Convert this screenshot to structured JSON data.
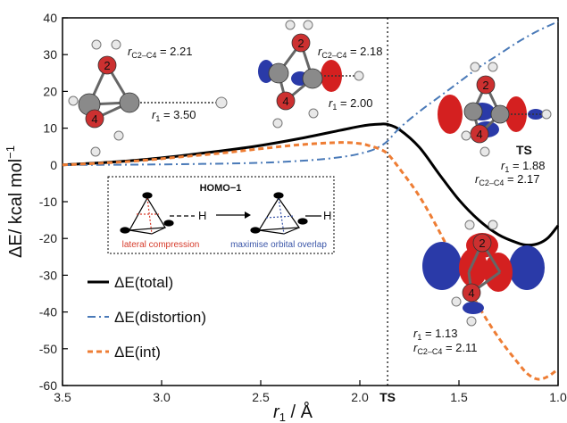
{
  "chart_data": {
    "type": "line",
    "xlabel": "r",
    "xlabel_sub": "1",
    "xlabel_unit": " / Å",
    "ylabel": "ΔE/ kcal mol",
    "ylabel_sup": "−1",
    "xlim": [
      3.5,
      1.0
    ],
    "ylim": [
      -60,
      40
    ],
    "x_ticks": [
      "3.5",
      "3.0",
      "2.5",
      "2.0",
      "1.5",
      "1.0"
    ],
    "x_tick_values": [
      3.5,
      3.0,
      2.5,
      2.0,
      1.5,
      1.0
    ],
    "y_ticks": [
      "40",
      "30",
      "20",
      "10",
      "0",
      "-10",
      "-20",
      "-30",
      "-40",
      "-50",
      "-60"
    ],
    "y_tick_values": [
      40,
      30,
      20,
      10,
      0,
      -10,
      -20,
      -30,
      -40,
      -50,
      -60
    ],
    "ts_x": 1.86,
    "ts_label": "TS",
    "series": [
      {
        "name": "ΔE(total)",
        "color": "#000000",
        "style": "solid",
        "x": [
          3.5,
          3.3,
          3.1,
          2.9,
          2.7,
          2.5,
          2.3,
          2.1,
          2.0,
          1.95,
          1.9,
          1.86,
          1.8,
          1.7,
          1.6,
          1.5,
          1.4,
          1.3,
          1.2,
          1.15,
          1.1,
          1.05,
          1.0
        ],
        "y": [
          0,
          0.6,
          1.4,
          2.5,
          3.8,
          5.3,
          7.2,
          9.4,
          10.5,
          10.9,
          11.1,
          11.0,
          9.6,
          4.8,
          -2.5,
          -9.5,
          -15.0,
          -19.0,
          -21.3,
          -21.8,
          -21.4,
          -19.8,
          -16.5
        ]
      },
      {
        "name": "ΔE(distortion)",
        "color": "#4a7ab8",
        "style": "dash-dot",
        "x": [
          3.5,
          3.2,
          2.9,
          2.6,
          2.4,
          2.2,
          2.05,
          1.95,
          1.9,
          1.86,
          1.8,
          1.7,
          1.6,
          1.5,
          1.4,
          1.3,
          1.2,
          1.1,
          1.0
        ],
        "y": [
          0,
          0.05,
          0.2,
          0.45,
          0.8,
          1.5,
          2.5,
          3.8,
          5.0,
          6.5,
          10.0,
          14.5,
          18.5,
          22.5,
          26.5,
          30.0,
          33.5,
          36.5,
          39.0
        ]
      },
      {
        "name": "ΔE(int)",
        "color": "#ee7d34",
        "style": "dashed",
        "x": [
          3.5,
          3.3,
          3.1,
          2.9,
          2.7,
          2.5,
          2.3,
          2.1,
          2.0,
          1.95,
          1.9,
          1.86,
          1.8,
          1.7,
          1.6,
          1.5,
          1.4,
          1.3,
          1.2,
          1.15,
          1.1,
          1.05,
          1.0
        ],
        "y": [
          0,
          0.5,
          1.2,
          2.2,
          3.2,
          4.4,
          5.5,
          6.1,
          5.8,
          5.2,
          4.3,
          3.0,
          -1.0,
          -8.5,
          -18.0,
          -28.5,
          -38.5,
          -47.0,
          -54.0,
          -57.0,
          -58.3,
          -57.5,
          -55.5
        ]
      }
    ]
  },
  "annotations": {
    "struct1_rcc_label": "r",
    "struct1_rcc_sub": "C2–C4",
    "struct1_rcc_val": " = 2.21",
    "struct1_r1_label": "r",
    "struct1_r1_sub": "1",
    "struct1_r1_val": " = 3.50",
    "struct2_rcc_label": "r",
    "struct2_rcc_sub": "C2–C4",
    "struct2_rcc_val": " = 2.18",
    "struct2_r1_label": "r",
    "struct2_r1_sub": "1",
    "struct2_r1_val": " = 2.00",
    "ts_bold": "TS",
    "ts_r1_label": "r",
    "ts_r1_sub": "1",
    "ts_r1_val": " = 1.88",
    "ts_rcc_label": "r",
    "ts_rcc_sub": "C2–C4",
    "ts_rcc_val": " = 2.17",
    "end_r1_label": "r",
    "end_r1_sub": "1",
    "end_r1_val": " = 1.13",
    "end_rcc_label": "r",
    "end_rcc_sub": "C2–C4",
    "end_rcc_val": " = 2.11"
  },
  "inset": {
    "title": "HOMO−1",
    "h_left": "H",
    "h_right": "H",
    "caption_left": "lateral compression",
    "caption_right": "maximise orbital overlap",
    "caption_left_color": "#d63a2a",
    "caption_right_color": "#3a55a8"
  },
  "atom_labels": [
    "2",
    "4",
    "2",
    "4",
    "2",
    "4",
    "2",
    "4"
  ],
  "colors": {
    "total": "#000000",
    "distortion": "#4a7ab8",
    "int": "#ee7d34",
    "orbital_red": "#d42020",
    "orbital_blue": "#2a3aa8",
    "atom_carbon": "#8a8a8a",
    "atom_hydrogen": "#e8e8e8",
    "atom_oxygen": "#cc3030"
  }
}
